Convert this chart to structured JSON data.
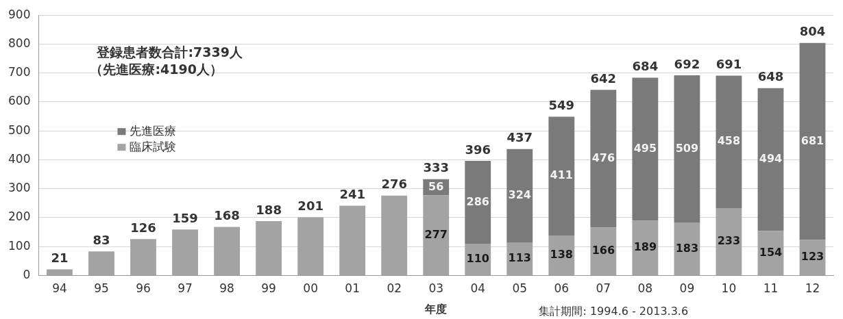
{
  "chart_data": {
    "type": "bar",
    "stacked": true,
    "categories": [
      "94",
      "95",
      "96",
      "97",
      "98",
      "99",
      "00",
      "01",
      "02",
      "03",
      "04",
      "05",
      "06",
      "07",
      "08",
      "09",
      "10",
      "11",
      "12"
    ],
    "series": [
      {
        "name": "臨床試験",
        "color": "#a3a3a3",
        "values": [
          21,
          83,
          126,
          159,
          168,
          188,
          201,
          241,
          276,
          277,
          110,
          113,
          138,
          166,
          189,
          183,
          233,
          154,
          123
        ],
        "value_labels": [
          null,
          null,
          null,
          null,
          null,
          null,
          null,
          null,
          null,
          "277",
          "110",
          "113",
          "138",
          "166",
          "189",
          "183",
          "233",
          "154",
          "123"
        ]
      },
      {
        "name": "先進医療",
        "color": "#7a7a7a",
        "values": [
          null,
          null,
          null,
          null,
          null,
          null,
          null,
          null,
          null,
          56,
          286,
          324,
          411,
          476,
          495,
          509,
          458,
          494,
          681
        ],
        "value_labels": [
          null,
          null,
          null,
          null,
          null,
          null,
          null,
          null,
          null,
          "56",
          "286",
          "324",
          "411",
          "476",
          "495",
          "509",
          "458",
          "494",
          "681"
        ]
      }
    ],
    "totals": [
      "21",
      "83",
      "126",
      "159",
      "168",
      "188",
      "201",
      "241",
      "276",
      "333",
      "396",
      "437",
      "549",
      "642",
      "684",
      "692",
      "691",
      "648",
      "804"
    ],
    "xlabel": "年度",
    "ylim": [
      0,
      900
    ],
    "yticks": [
      0,
      100,
      200,
      300,
      400,
      500,
      600,
      700,
      800,
      900
    ],
    "grid": "y",
    "legend": "left",
    "annotations": [
      "登録患者数合計:7339人",
      "（先進医療:4190人）",
      "集計期間: 1994.6 - 2013.3.6"
    ]
  }
}
